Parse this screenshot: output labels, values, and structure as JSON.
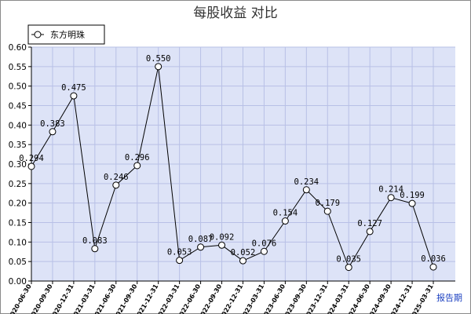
{
  "chart_data": {
    "type": "line",
    "title": "每股收益  对比",
    "xlabel": "",
    "ylabel": "",
    "x_axis_end_label": "报告期",
    "categories": [
      "2020-06-30",
      "2020-09-30",
      "2020-12-31",
      "2021-03-31",
      "2021-06-30",
      "2021-09-30",
      "2021-12-31",
      "2022-03-31",
      "2022-06-30",
      "2022-09-30",
      "2022-12-31",
      "2023-03-31",
      "2023-06-30",
      "2023-09-30",
      "2023-12-31",
      "2024-03-31",
      "2024-06-30",
      "2024-09-30",
      "2024-12-31",
      "2025-03-31"
    ],
    "series": [
      {
        "name": "东方明珠",
        "values": [
          0.294,
          0.383,
          0.475,
          0.083,
          0.246,
          0.296,
          0.55,
          0.053,
          0.087,
          0.092,
          0.052,
          0.076,
          0.154,
          0.234,
          0.179,
          0.035,
          0.127,
          0.214,
          0.199,
          0.036
        ],
        "labels": [
          "0.294",
          "0.383",
          "0.475",
          "0.083",
          "0.246",
          "0.296",
          "0.550",
          "0.053",
          "0.087",
          "0.092",
          "0.052",
          "0.076",
          "0.154",
          "0.234",
          "0.179",
          "0.035",
          "0.127",
          "0.214",
          "0.199",
          "0.036"
        ]
      }
    ],
    "ylim": [
      0,
      0.6
    ],
    "yticks": [
      "0.00",
      "0.05",
      "0.10",
      "0.15",
      "0.20",
      "0.25",
      "0.30",
      "0.35",
      "0.40",
      "0.45",
      "0.50",
      "0.55",
      "0.60"
    ],
    "grid": true,
    "legend_position": "top-left",
    "colors": {
      "plot_bg": "#dde3f7",
      "grid": "#b8c0e6",
      "line": "#000000",
      "marker_fill": "#ffffff"
    }
  }
}
